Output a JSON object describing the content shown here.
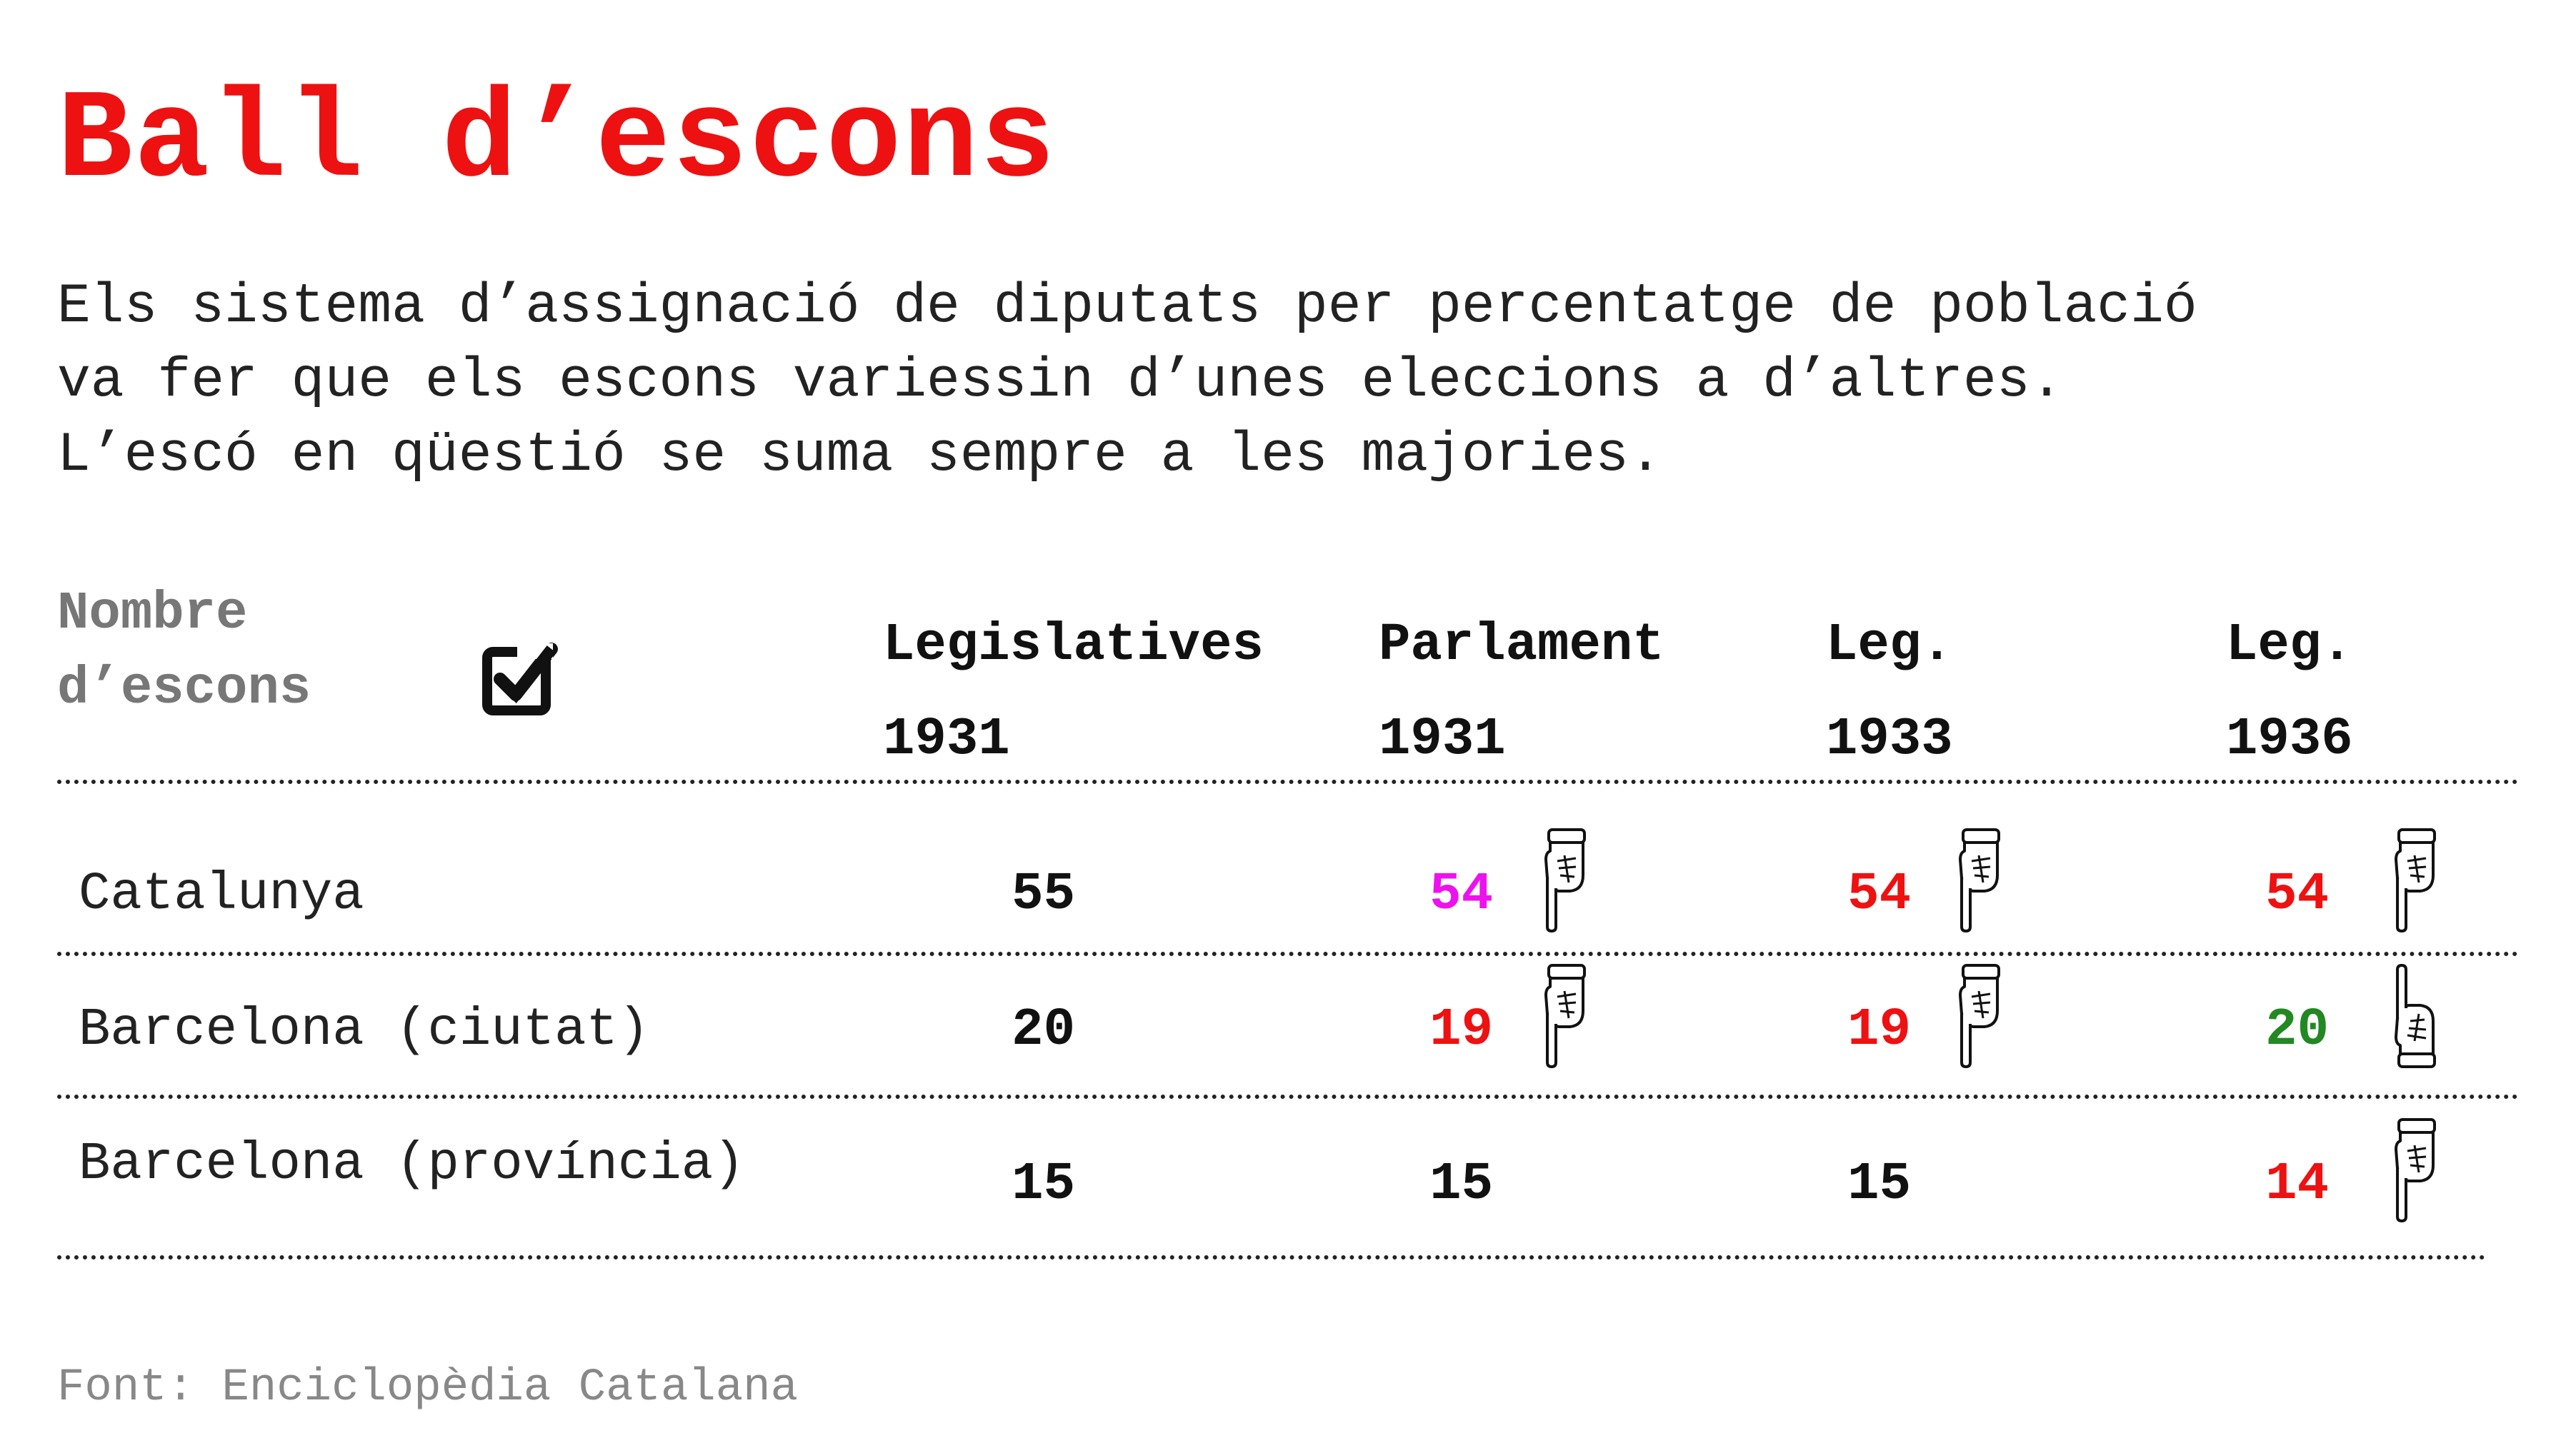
{
  "title": "Ball d’escons",
  "subtitle": {
    "line1": "Els sistema d’assignació de diputats per percentatge de població",
    "line2": "va fer que els escons variessin d’unes eleccions a d’altres.",
    "line3": "L’escó en qüestió se suma sempre a les majories."
  },
  "table_header": {
    "line1": "Nombre",
    "line2": "d’escons",
    "icon": "checkbox-checked-icon"
  },
  "columns": [
    {
      "line1": "Legislatives",
      "line2": "1931"
    },
    {
      "line1": "Parlament",
      "line2": "1931"
    },
    {
      "line1": "Leg.",
      "line2": "1933"
    },
    {
      "line1": "Leg.",
      "line2": "1936"
    }
  ],
  "rows": [
    {
      "label": "Catalunya",
      "cells": [
        {
          "value": "55",
          "color": "#111111",
          "change": "none"
        },
        {
          "value": "54",
          "color": "#ee11ee",
          "change": "down"
        },
        {
          "value": "54",
          "color": "#ee1111",
          "change": "down"
        },
        {
          "value": "54",
          "color": "#ee1111",
          "change": "down"
        }
      ]
    },
    {
      "label": "Barcelona (ciutat)",
      "cells": [
        {
          "value": "20",
          "color": "#111111",
          "change": "none"
        },
        {
          "value": "19",
          "color": "#ee1111",
          "change": "down"
        },
        {
          "value": "19",
          "color": "#ee1111",
          "change": "down"
        },
        {
          "value": "20",
          "color": "#228822",
          "change": "up"
        }
      ]
    },
    {
      "label": "Barcelona (província)",
      "cells": [
        {
          "value": "15",
          "color": "#111111",
          "change": "none"
        },
        {
          "value": "15",
          "color": "#111111",
          "change": "none"
        },
        {
          "value": "15",
          "color": "#111111",
          "change": "none"
        },
        {
          "value": "14",
          "color": "#ee1111",
          "change": "down"
        }
      ]
    }
  ],
  "icons": {
    "down": "pointing-hand-down-icon",
    "up": "pointing-hand-up-icon"
  },
  "source": "Font: Enciclopèdia Catalana",
  "chart_data": {
    "type": "table",
    "title": "Ball d’escons",
    "column_headers": [
      "Legislatives 1931",
      "Parlament 1931",
      "Leg. 1933",
      "Leg. 1936"
    ],
    "row_headers": [
      "Catalunya",
      "Barcelona (ciutat)",
      "Barcelona (província)"
    ],
    "values": [
      [
        55,
        54,
        54,
        54
      ],
      [
        20,
        19,
        19,
        20
      ],
      [
        15,
        15,
        15,
        14
      ]
    ]
  }
}
